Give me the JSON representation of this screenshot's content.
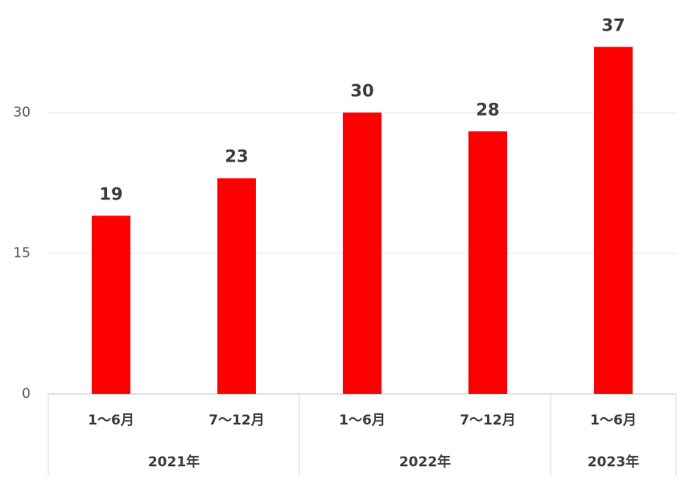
{
  "chart_data": {
    "type": "bar",
    "color": "#ff0000",
    "ylim": [
      0,
      40
    ],
    "yticks": [
      0,
      15,
      30
    ],
    "grid": true,
    "groups": [
      {
        "name": "2021年",
        "categories": [
          "1～6月",
          "7～12月"
        ],
        "values": [
          19,
          23
        ]
      },
      {
        "name": "2022年",
        "categories": [
          "1～6月",
          "7～12月"
        ],
        "values": [
          30,
          28
        ]
      },
      {
        "name": "2023年",
        "categories": [
          "1～6月"
        ],
        "values": [
          37
        ]
      }
    ]
  }
}
